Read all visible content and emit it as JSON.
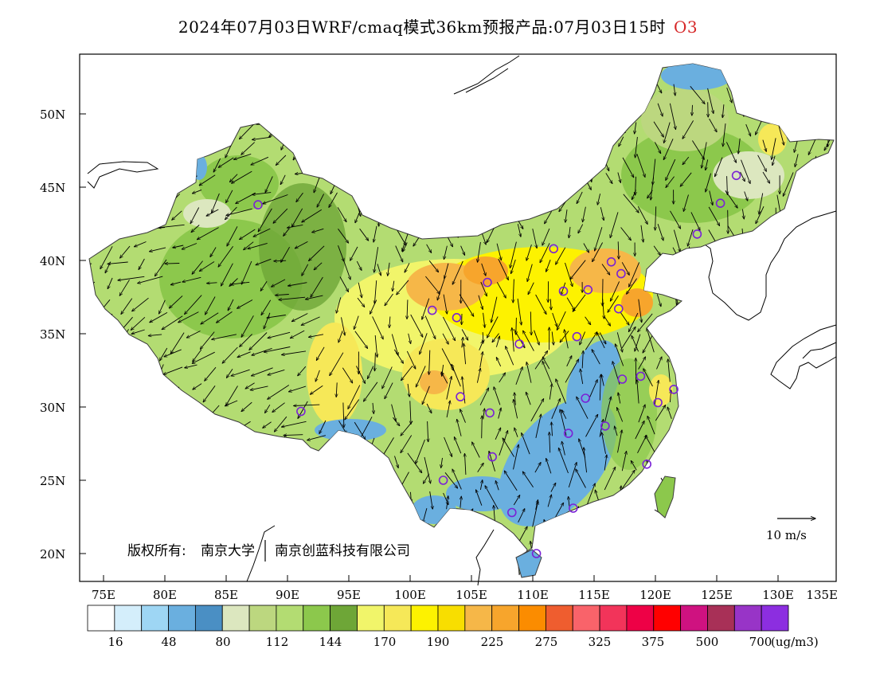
{
  "title": {
    "main": "2024年07月03日WRF/cmaq模式36km预报产品:07月03日15时",
    "pollutant": "O3"
  },
  "map": {
    "lat_labels": [
      "50N",
      "45N",
      "40N",
      "35N",
      "30N",
      "25N",
      "20N"
    ],
    "lon_labels": [
      "75E",
      "80E",
      "85E",
      "90E",
      "95E",
      "100E",
      "105E",
      "110E",
      "115E",
      "120E",
      "125E",
      "130E",
      "135E"
    ],
    "copyright_label": "版权所有:",
    "copyright_org1": "南京大学",
    "copyright_org2": "南京创蓝科技有限公司",
    "wind_reference": "10 m/s",
    "icons": [
      "city-marker-icon",
      "wind-vector-icon"
    ],
    "cities": [
      {
        "lon": 87.6,
        "lat": 43.8
      },
      {
        "lon": 91.1,
        "lat": 29.7
      },
      {
        "lon": 101.8,
        "lat": 36.6
      },
      {
        "lon": 103.8,
        "lat": 36.1
      },
      {
        "lon": 106.3,
        "lat": 38.5
      },
      {
        "lon": 104.1,
        "lat": 30.7
      },
      {
        "lon": 106.5,
        "lat": 29.6
      },
      {
        "lon": 106.7,
        "lat": 26.6
      },
      {
        "lon": 102.7,
        "lat": 25.0
      },
      {
        "lon": 108.3,
        "lat": 22.8
      },
      {
        "lon": 108.9,
        "lat": 34.3
      },
      {
        "lon": 111.7,
        "lat": 40.8
      },
      {
        "lon": 112.5,
        "lat": 37.9
      },
      {
        "lon": 113.6,
        "lat": 34.8
      },
      {
        "lon": 114.3,
        "lat": 30.6
      },
      {
        "lon": 112.9,
        "lat": 28.2
      },
      {
        "lon": 113.3,
        "lat": 23.1
      },
      {
        "lon": 110.3,
        "lat": 20.0
      },
      {
        "lon": 114.5,
        "lat": 38.0
      },
      {
        "lon": 116.4,
        "lat": 39.9
      },
      {
        "lon": 117.2,
        "lat": 39.1
      },
      {
        "lon": 117.0,
        "lat": 36.7
      },
      {
        "lon": 117.3,
        "lat": 31.9
      },
      {
        "lon": 118.8,
        "lat": 32.1
      },
      {
        "lon": 120.2,
        "lat": 30.3
      },
      {
        "lon": 121.5,
        "lat": 31.2
      },
      {
        "lon": 119.3,
        "lat": 26.1
      },
      {
        "lon": 115.9,
        "lat": 28.7
      },
      {
        "lon": 123.4,
        "lat": 41.8
      },
      {
        "lon": 125.3,
        "lat": 43.9
      },
      {
        "lon": 126.6,
        "lat": 45.8
      }
    ]
  },
  "colorbar": {
    "colors": [
      "#ffffff",
      "#d4eefb",
      "#9ed6f4",
      "#6aafdf",
      "#4a8fc4",
      "#dce7bf",
      "#bcd77f",
      "#b3dc72",
      "#8cc84c",
      "#6ea637",
      "#f1f56a",
      "#f6e858",
      "#fdf200",
      "#f8de00",
      "#f6b748",
      "#f7a52c",
      "#fb8c00",
      "#ef5d2f",
      "#f9636a",
      "#f2345a",
      "#ee0146",
      "#ff0000",
      "#cf1280",
      "#a83057",
      "#9834c7",
      "#8c2ee0"
    ],
    "labels": [
      "16",
      "48",
      "80",
      "112",
      "144",
      "170",
      "190",
      "225",
      "275",
      "325",
      "375",
      "500",
      "700"
    ],
    "unit": "(ug/m3)"
  }
}
